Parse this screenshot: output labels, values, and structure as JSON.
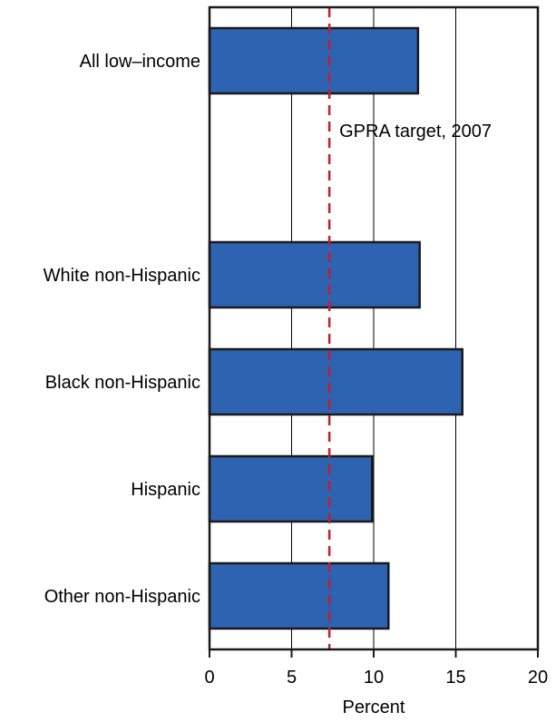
{
  "chart_data": {
    "type": "bar",
    "orientation": "horizontal",
    "categories": [
      "All low–income",
      "White non-Hispanic",
      "Black non-Hispanic",
      "Hispanic",
      "Other non-Hispanic"
    ],
    "values": [
      12.7,
      12.8,
      15.4,
      9.9,
      10.9
    ],
    "xlabel": "Percent",
    "xlim": [
      0,
      20
    ],
    "xticks": [
      0,
      5,
      10,
      15,
      20
    ],
    "grid": "vertical",
    "target_line": {
      "value": 7.3,
      "label": "GPRA target, 2007"
    },
    "colors": {
      "bar": "#2d63b0",
      "bar_edge": "#1a1a1a",
      "target": "#c0202a",
      "grid": "#000000"
    }
  }
}
